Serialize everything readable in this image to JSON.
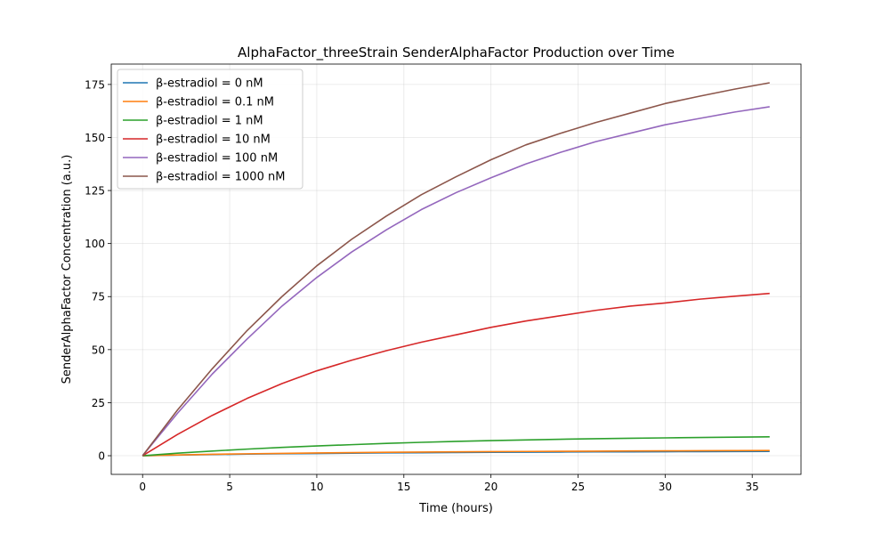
{
  "chart_data": {
    "type": "line",
    "title": "AlphaFactor_threeStrain SenderAlphaFactor Production over Time",
    "xlabel": "Time (hours)",
    "ylabel": "SenderAlphaFactor Concentration (a.u.)",
    "xlim": [
      -1.8,
      37.8
    ],
    "ylim": [
      -8.8,
      184.6
    ],
    "xticks": [
      0,
      5,
      10,
      15,
      20,
      25,
      30,
      35
    ],
    "yticks": [
      0,
      25,
      50,
      75,
      100,
      125,
      150,
      175
    ],
    "grid": true,
    "legend_position": "top-left",
    "x": [
      0,
      2,
      4,
      6,
      8,
      10,
      12,
      14,
      16,
      18,
      20,
      22,
      24,
      26,
      28,
      30,
      32,
      34,
      36
    ],
    "series": [
      {
        "name": "β-estradiol = 0 nM",
        "color": "#1f77b4",
        "values": [
          0,
          0.3,
          0.55,
          0.75,
          0.9,
          1.05,
          1.2,
          1.32,
          1.42,
          1.52,
          1.6,
          1.67,
          1.73,
          1.79,
          1.84,
          1.88,
          1.92,
          1.96,
          2.0
        ]
      },
      {
        "name": "β-estradiol = 0.1 nM",
        "color": "#ff7f0e",
        "values": [
          0,
          0.35,
          0.65,
          0.9,
          1.1,
          1.3,
          1.45,
          1.6,
          1.72,
          1.82,
          1.92,
          2.0,
          2.08,
          2.15,
          2.22,
          2.28,
          2.34,
          2.4,
          2.45
        ]
      },
      {
        "name": "β-estradiol = 1 nM",
        "color": "#2ca02c",
        "values": [
          0,
          1.2,
          2.2,
          3.1,
          3.9,
          4.6,
          5.2,
          5.8,
          6.3,
          6.75,
          7.1,
          7.45,
          7.75,
          8.0,
          8.2,
          8.4,
          8.6,
          8.75,
          8.9
        ]
      },
      {
        "name": "β-estradiol = 10 nM",
        "color": "#d62728",
        "values": [
          0,
          10,
          19,
          27,
          34,
          40,
          45,
          49.5,
          53.5,
          57,
          60.5,
          63.5,
          66,
          68.5,
          70.5,
          72,
          73.8,
          75.2,
          76.5
        ]
      },
      {
        "name": "β-estradiol = 100 nM",
        "color": "#9467bd",
        "values": [
          0,
          20,
          38.5,
          55,
          70.5,
          84,
          96,
          106.5,
          116,
          124,
          131,
          137.5,
          143,
          148,
          152,
          156,
          159,
          162,
          164.5
        ]
      },
      {
        "name": "β-estradiol = 1000 nM",
        "color": "#8c564b",
        "values": [
          0,
          21.5,
          41,
          59,
          75,
          89.5,
          102,
          113,
          123,
          131.5,
          139.5,
          146.5,
          152,
          157,
          161.5,
          166,
          169.5,
          172.8,
          175.8
        ]
      }
    ]
  }
}
